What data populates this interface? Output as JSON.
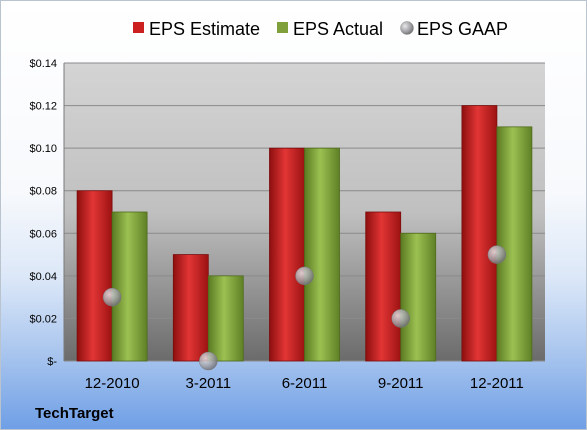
{
  "company": "TechTarget",
  "colors": {
    "estimate": "#cc1f1f",
    "actual": "#7fa03a",
    "gaap": "#a9a9ad"
  },
  "chart_data": {
    "type": "bar",
    "categories": [
      "12-2010",
      "3-2011",
      "6-2011",
      "9-2011",
      "12-2011"
    ],
    "series": [
      {
        "name": "EPS Estimate",
        "type": "bar",
        "values": [
          0.08,
          0.05,
          0.1,
          0.07,
          0.12
        ]
      },
      {
        "name": "EPS Actual",
        "type": "bar",
        "values": [
          0.07,
          0.04,
          0.1,
          0.06,
          0.11
        ]
      },
      {
        "name": "EPS GAAP",
        "type": "scatter",
        "values": [
          0.03,
          0.0,
          0.04,
          0.02,
          0.05
        ]
      }
    ],
    "ylim": [
      0,
      0.14
    ],
    "yticks": [
      0,
      0.02,
      0.04,
      0.06,
      0.08,
      0.1,
      0.12,
      0.14
    ],
    "ytick_labels": [
      "$-",
      "$0.02",
      "$0.04",
      "$0.06",
      "$0.08",
      "$0.10",
      "$0.12",
      "$0.14"
    ],
    "legend_position": "top",
    "grid": true
  }
}
